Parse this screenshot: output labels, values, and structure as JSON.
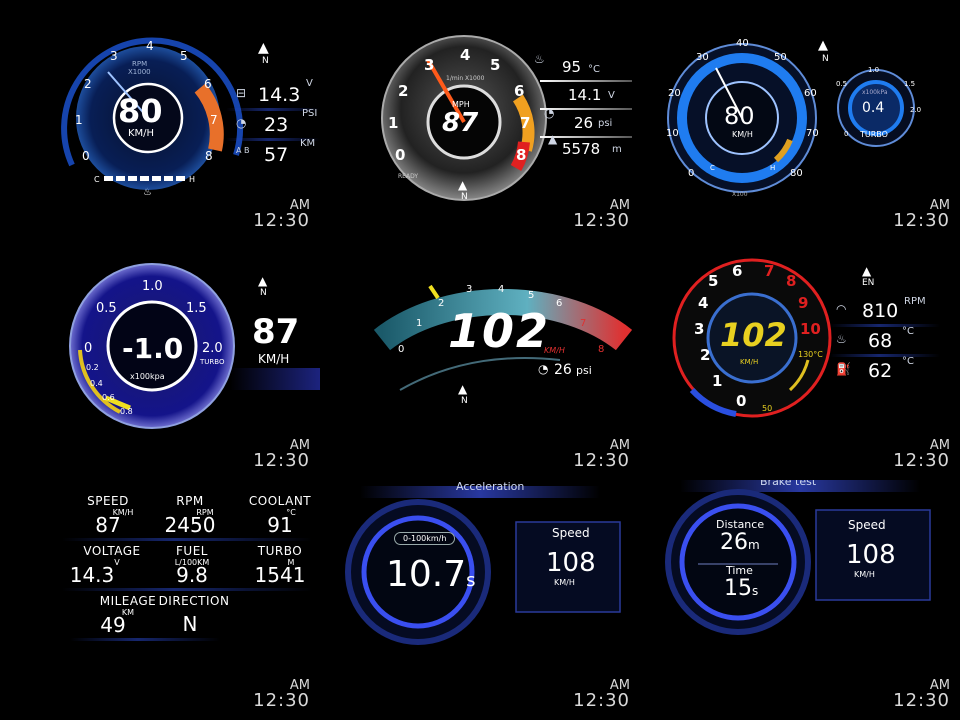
{
  "clock": {
    "ampm": "AM",
    "time": "12:30"
  },
  "p1": {
    "speed": "80",
    "unit": "KM/H",
    "rpm_label": "RPM",
    "rpm_mult": "X1000",
    "ticks": [
      "0",
      "1",
      "2",
      "3",
      "4",
      "5",
      "6",
      "7",
      "8"
    ],
    "temp_c": "C",
    "temp_h": "H",
    "compass": "N",
    "rows": [
      {
        "icon": "battery-icon",
        "glyph": "⊟",
        "value": "14.3",
        "unit": "V"
      },
      {
        "icon": "turbo-icon",
        "glyph": "◔",
        "value": "23",
        "unit": "PSI"
      },
      {
        "icon": "distance-icon",
        "glyph": "A B",
        "value": "57",
        "unit": "KM"
      }
    ]
  },
  "p2": {
    "speed": "87",
    "unit": "MPH",
    "rpm_mult": "1/min X1000",
    "ready": "READY",
    "ticks": [
      "0",
      "1",
      "2",
      "3",
      "4",
      "5",
      "6",
      "7",
      "8"
    ],
    "compass": "N",
    "rows": [
      {
        "icon": "coolant-icon",
        "glyph": "♨",
        "value": "95",
        "unit": "°C"
      },
      {
        "icon": "battery-icon",
        "glyph": "⊟",
        "value": "14.1",
        "unit": "V"
      },
      {
        "icon": "turbo-icon",
        "glyph": "◔",
        "value": "26",
        "unit": "psi"
      },
      {
        "icon": "altitude-icon",
        "glyph": "▲",
        "value": "5578",
        "unit": "m"
      }
    ]
  },
  "p3": {
    "speed": "80",
    "unit": "KM/H",
    "ticks": [
      "0",
      "10",
      "20",
      "30",
      "40",
      "50",
      "60",
      "70",
      "80"
    ],
    "x100": "X100",
    "c": "C",
    "h": "H",
    "compass": "N",
    "turbo_value": "0.4",
    "turbo_label": "TURBO",
    "turbo_unit": "x100kPa",
    "turbo_ticks": [
      "0",
      "0.5",
      "1.0",
      "1.5",
      "2.0"
    ]
  },
  "p4": {
    "value": "-1.0",
    "unit": "x100kpa",
    "turbo": "TURBO",
    "ticks": [
      "0",
      "0.5",
      "1.0",
      "1.5",
      "2.0"
    ],
    "minor": [
      "0.2",
      "0.4",
      "0.6",
      "0.8"
    ],
    "speed": "87",
    "speed_unit": "KM/H",
    "compass": "N"
  },
  "p5": {
    "speed": "102",
    "unit": "KM/H",
    "ticks": [
      "0",
      "1",
      "2",
      "3",
      "4",
      "5",
      "6",
      "7",
      "8"
    ],
    "psi_value": "26",
    "psi_unit": "psi",
    "compass": "N"
  },
  "p6": {
    "speed": "102",
    "unit": "KM/H",
    "ticks": [
      "0",
      "1",
      "2",
      "3",
      "4",
      "5",
      "6",
      "7",
      "8",
      "9",
      "10"
    ],
    "temp_hi": "130°C",
    "temp_lo": "50",
    "lang": "EN",
    "compass": "N",
    "rows": [
      {
        "icon": "rpm-icon",
        "glyph": "◠",
        "value": "810",
        "unit": "RPM"
      },
      {
        "icon": "coolant-icon",
        "glyph": "♨",
        "value": "68",
        "unit": "°C"
      },
      {
        "icon": "oil-icon",
        "glyph": "⛽",
        "value": "62",
        "unit": "°C"
      }
    ]
  },
  "p7": {
    "items": [
      {
        "name": "SPEED",
        "unit": "KM/H",
        "value": "87"
      },
      {
        "name": "RPM",
        "unit": "RPM",
        "value": "2450"
      },
      {
        "name": "COOLANT",
        "unit": "°C",
        "value": "91"
      },
      {
        "name": "VOLTAGE",
        "unit": "V",
        "value": "14.3"
      },
      {
        "name": "FUEL",
        "unit": "L/100KM",
        "value": "9.8"
      },
      {
        "name": "TURBO",
        "unit": "M",
        "value": "1541"
      },
      {
        "name": "MILEAGE",
        "unit": "KM",
        "value": "49"
      },
      {
        "name": "DIRECTION",
        "unit": "",
        "value": "N"
      }
    ]
  },
  "p8": {
    "header": "Acceleration",
    "range": "0-100km/h",
    "value": "10.7",
    "value_unit": "s",
    "speed_label": "Speed",
    "speed": "108",
    "speed_unit": "KM/H"
  },
  "p9": {
    "header": "Brake test",
    "distance_label": "Distance",
    "distance": "26",
    "distance_unit": "m",
    "time_label": "Time",
    "time": "15",
    "time_unit": "s",
    "speed_label": "Speed",
    "speed": "108",
    "speed_unit": "KM/H"
  }
}
